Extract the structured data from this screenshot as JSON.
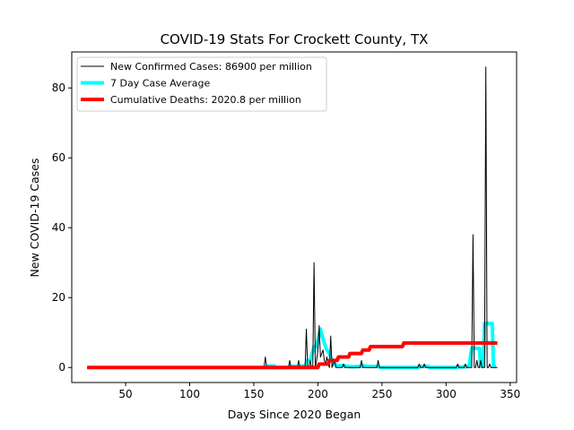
{
  "chart_data": {
    "type": "line",
    "title": "COVID-19 Stats For Crockett County, TX",
    "xlabel": "Days Since 2020 Began",
    "ylabel": "New COVID-19 Cases",
    "xlim": [
      8,
      355
    ],
    "ylim": [
      -4.3,
      90.3
    ],
    "x_ticks": [
      50,
      100,
      150,
      200,
      250,
      300,
      350
    ],
    "y_ticks": [
      0,
      20,
      40,
      60,
      80
    ],
    "grid": false,
    "legend_position": "top-left",
    "series": [
      {
        "name": "New Confirmed Cases: 86900 per million",
        "color": "#000000",
        "points": [
          [
            20,
            0
          ],
          [
            158,
            0
          ],
          [
            159,
            3
          ],
          [
            160,
            0
          ],
          [
            177,
            0
          ],
          [
            178,
            2
          ],
          [
            179,
            0
          ],
          [
            184,
            0
          ],
          [
            185,
            2
          ],
          [
            186,
            0
          ],
          [
            190,
            0
          ],
          [
            191,
            11
          ],
          [
            192,
            0
          ],
          [
            193,
            0
          ],
          [
            194,
            2
          ],
          [
            195,
            0
          ],
          [
            196,
            0
          ],
          [
            197,
            30
          ],
          [
            198,
            0
          ],
          [
            199,
            2
          ],
          [
            200,
            5
          ],
          [
            201,
            12
          ],
          [
            202,
            3
          ],
          [
            203,
            4
          ],
          [
            204,
            5
          ],
          [
            205,
            2
          ],
          [
            206,
            1
          ],
          [
            207,
            3
          ],
          [
            208,
            1
          ],
          [
            209,
            0
          ],
          [
            210,
            9
          ],
          [
            211,
            0
          ],
          [
            213,
            2
          ],
          [
            214,
            0
          ],
          [
            219,
            0
          ],
          [
            220,
            1
          ],
          [
            221,
            0
          ],
          [
            233,
            0
          ],
          [
            234,
            2
          ],
          [
            235,
            0
          ],
          [
            246,
            0
          ],
          [
            247,
            2
          ],
          [
            248,
            0
          ],
          [
            278,
            0
          ],
          [
            279,
            1
          ],
          [
            280,
            0
          ],
          [
            282,
            0
          ],
          [
            283,
            1
          ],
          [
            284,
            0
          ],
          [
            308,
            0
          ],
          [
            309,
            1
          ],
          [
            310,
            0
          ],
          [
            314,
            0
          ],
          [
            315,
            1
          ],
          [
            316,
            0
          ],
          [
            320,
            0
          ],
          [
            321,
            38
          ],
          [
            322,
            0
          ],
          [
            323,
            0
          ],
          [
            324,
            2
          ],
          [
            325,
            0
          ],
          [
            326,
            0
          ],
          [
            327,
            2
          ],
          [
            328,
            0
          ],
          [
            330,
            0
          ],
          [
            331,
            86
          ],
          [
            332,
            0
          ],
          [
            333,
            0
          ],
          [
            334,
            1
          ],
          [
            335,
            0
          ],
          [
            340,
            0
          ]
        ]
      },
      {
        "name": "7 Day Case Average",
        "color": "#00ffff",
        "points": [
          [
            160,
            0.4
          ],
          [
            166,
            0.4
          ],
          [
            167,
            0
          ],
          [
            177,
            0
          ],
          [
            178,
            0.3
          ],
          [
            184,
            0.3
          ],
          [
            185,
            0.3
          ],
          [
            190,
            0.5
          ],
          [
            192,
            2
          ],
          [
            194,
            2
          ],
          [
            197,
            6
          ],
          [
            199,
            6
          ],
          [
            201,
            9.5
          ],
          [
            202,
            11
          ],
          [
            203,
            9.5
          ],
          [
            205,
            7
          ],
          [
            207,
            5
          ],
          [
            209,
            4
          ],
          [
            211,
            2
          ],
          [
            213,
            1
          ],
          [
            215,
            0.5
          ],
          [
            220,
            0.5
          ],
          [
            226,
            0.2
          ],
          [
            233,
            0.3
          ],
          [
            235,
            0.5
          ],
          [
            240,
            0.3
          ],
          [
            247,
            0.3
          ],
          [
            249,
            0
          ],
          [
            278,
            0
          ],
          [
            280,
            0.3
          ],
          [
            286,
            0.3
          ],
          [
            287,
            0
          ],
          [
            308,
            0
          ],
          [
            310,
            0.2
          ],
          [
            316,
            0.2
          ],
          [
            318,
            0.5
          ],
          [
            320,
            5.5
          ],
          [
            321,
            5.5
          ],
          [
            322,
            5.5
          ],
          [
            326,
            5.5
          ],
          [
            327,
            0.3
          ],
          [
            329,
            0.3
          ],
          [
            330,
            12.6
          ],
          [
            336,
            12.6
          ],
          [
            337,
            0.3
          ],
          [
            339,
            0.3
          ]
        ]
      },
      {
        "name": "Cumulative Deaths: 2020.8 per million",
        "color": "#ff0000",
        "points": [
          [
            20,
            0
          ],
          [
            200,
            0
          ],
          [
            201,
            1
          ],
          [
            208,
            1
          ],
          [
            209,
            2
          ],
          [
            215,
            2
          ],
          [
            216,
            3
          ],
          [
            224,
            3
          ],
          [
            225,
            4
          ],
          [
            234,
            4
          ],
          [
            235,
            5
          ],
          [
            240,
            5
          ],
          [
            241,
            6
          ],
          [
            266,
            6
          ],
          [
            267,
            7
          ],
          [
            340,
            7
          ]
        ]
      }
    ]
  }
}
